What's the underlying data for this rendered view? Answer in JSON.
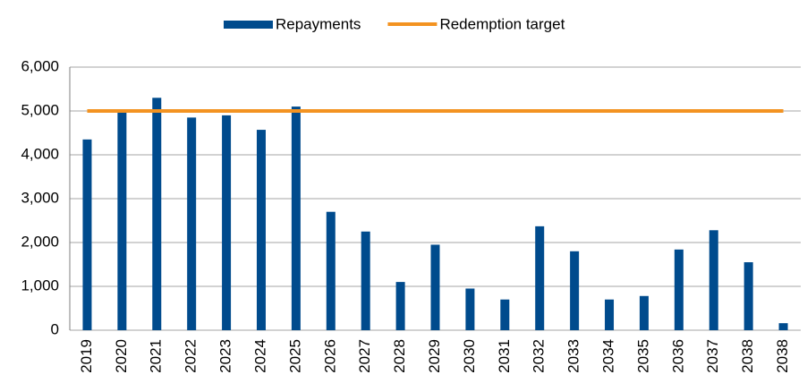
{
  "chart_data": {
    "type": "bar",
    "categories": [
      "2019",
      "2020",
      "2021",
      "2022",
      "2023",
      "2024",
      "2025",
      "2026",
      "2027",
      "2028",
      "2029",
      "2030",
      "2031",
      "2032",
      "2033",
      "2034",
      "2035",
      "2036",
      "2037",
      "2038",
      "2038"
    ],
    "series": [
      {
        "name": "Repayments",
        "type": "bar",
        "color": "#004b8d",
        "values": [
          4350,
          4980,
          5300,
          4850,
          4900,
          4570,
          5100,
          2700,
          2250,
          1100,
          1950,
          950,
          700,
          2370,
          1800,
          700,
          780,
          1840,
          2280,
          1550,
          160
        ]
      },
      {
        "name": "Redemption target",
        "type": "line",
        "color": "#f39321",
        "values": [
          5000,
          5000,
          5000,
          5000,
          5000,
          5000,
          5000,
          5000,
          5000,
          5000,
          5000,
          5000,
          5000,
          5000,
          5000,
          5000,
          5000,
          5000,
          5000,
          5000,
          5000
        ]
      }
    ],
    "ylim": [
      0,
      6000
    ],
    "yticks": [
      0,
      {
        "value": 1000,
        "label": "1,000"
      },
      {
        "value": 2000,
        "label": "2,000"
      },
      {
        "value": 3000,
        "label": "3,000"
      },
      {
        "value": 4000,
        "label": "4,000"
      },
      {
        "value": 5000,
        "label": "5,000"
      },
      {
        "value": 6000,
        "label": "6,000"
      }
    ],
    "grid": true,
    "legend": "top"
  }
}
